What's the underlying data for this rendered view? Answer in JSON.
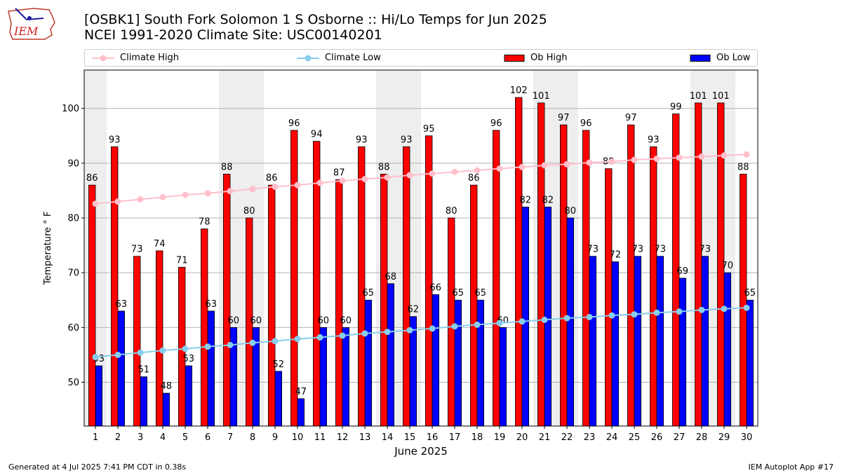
{
  "header": {
    "title_line1": "[OSBK1] South Fork Solomon 1 S Osborne :: Hi/Lo Temps for Jun 2025",
    "title_line2": "NCEI 1991-2020 Climate Site: USC00140201"
  },
  "logo": {
    "text": "IEM"
  },
  "footer": {
    "left": "Generated at 4 Jul 2025 7:41 PM CDT in 0.38s",
    "right": "IEM Autoplot App #17"
  },
  "colors": {
    "ob_high": "#ff0000",
    "ob_low": "#0000ff",
    "climate_high": "#ffc0cb",
    "climate_low": "#87ceeb",
    "weekend_shade": "#eeeeee",
    "grid": "#b0b0b0"
  },
  "chart_data": {
    "type": "bar",
    "title": "[OSBK1] South Fork Solomon 1 S Osborne :: Hi/Lo Temps for Jun 2025",
    "subtitle": "NCEI 1991-2020 Climate Site: USC00140201",
    "xlabel": "June 2025",
    "ylabel": "Temperature ° F",
    "ylim": [
      42,
      107
    ],
    "yticks": [
      50,
      60,
      70,
      80,
      90,
      100
    ],
    "grid": true,
    "legend_position": "top",
    "categories": [
      "1",
      "2",
      "3",
      "4",
      "5",
      "6",
      "7",
      "8",
      "9",
      "10",
      "11",
      "12",
      "13",
      "14",
      "15",
      "16",
      "17",
      "18",
      "19",
      "20",
      "21",
      "22",
      "23",
      "24",
      "25",
      "26",
      "27",
      "28",
      "29",
      "30"
    ],
    "weekend_days": [
      1,
      7,
      8,
      14,
      15,
      21,
      22,
      28,
      29
    ],
    "series": [
      {
        "name": "Climate High",
        "kind": "line",
        "values": [
          82.6,
          83.0,
          83.4,
          83.8,
          84.2,
          84.5,
          84.9,
          85.3,
          85.7,
          86.0,
          86.4,
          86.8,
          87.1,
          87.4,
          87.8,
          88.1,
          88.4,
          88.7,
          89.0,
          89.3,
          89.6,
          89.8,
          90.1,
          90.3,
          90.6,
          90.8,
          91.0,
          91.2,
          91.4,
          91.6
        ]
      },
      {
        "name": "Climate Low",
        "kind": "line",
        "values": [
          54.6,
          55.0,
          55.4,
          55.8,
          56.1,
          56.5,
          56.8,
          57.2,
          57.5,
          57.9,
          58.2,
          58.5,
          58.9,
          59.2,
          59.5,
          59.8,
          60.2,
          60.5,
          60.8,
          61.1,
          61.4,
          61.7,
          61.9,
          62.2,
          62.4,
          62.7,
          62.9,
          63.2,
          63.4,
          63.6
        ]
      },
      {
        "name": "Ob High",
        "kind": "bar",
        "values": [
          86,
          93,
          73,
          74,
          71,
          78,
          88,
          80,
          86,
          96,
          94,
          87,
          93,
          88,
          93,
          95,
          80,
          86,
          96,
          102,
          101,
          97,
          96,
          89,
          97,
          93,
          99,
          101,
          101,
          88
        ]
      },
      {
        "name": "Ob Low",
        "kind": "bar",
        "values": [
          53,
          63,
          51,
          48,
          53,
          63,
          60,
          60,
          52,
          47,
          60,
          60,
          65,
          68,
          62,
          66,
          65,
          65,
          60,
          82,
          82,
          80,
          73,
          72,
          73,
          73,
          69,
          73,
          70,
          65
        ]
      }
    ]
  }
}
